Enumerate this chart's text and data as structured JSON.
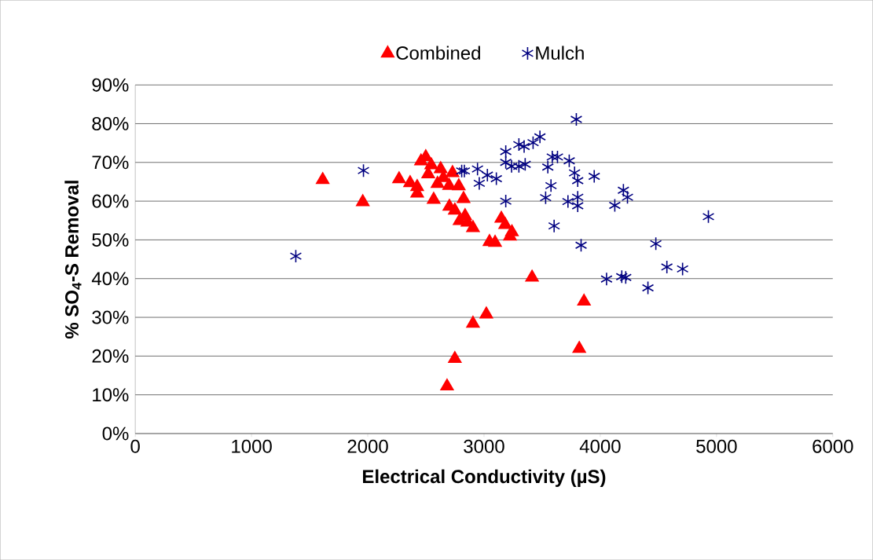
{
  "chart_data": {
    "type": "scatter",
    "xlabel": "Electrical Conductivity (µS)",
    "ylabel": "% SO$_{4}$-S Removal",
    "xlim": [
      0,
      6000
    ],
    "xticks": [
      0,
      1000,
      2000,
      3000,
      4000,
      5000,
      6000
    ],
    "ylim": [
      0,
      90
    ],
    "yticks": [
      {
        "value": 0,
        "label": "0%"
      },
      {
        "value": 10,
        "label": "10%"
      },
      {
        "value": 20,
        "label": "20%"
      },
      {
        "value": 30,
        "label": "30%"
      },
      {
        "value": 40,
        "label": "40%"
      },
      {
        "value": 50,
        "label": "50%"
      },
      {
        "value": 60,
        "label": "60%"
      },
      {
        "value": 70,
        "label": "70%"
      },
      {
        "value": 80,
        "label": "80%"
      },
      {
        "value": 90,
        "label": "90%"
      }
    ],
    "grid": "y",
    "legend": "top",
    "series": [
      {
        "name": "Combined",
        "color": "#ff0000",
        "marker": "triangle",
        "x": [
          1612,
          1957,
          2269,
          2364,
          2425,
          2425,
          2458,
          2499,
          2546,
          2567,
          2600,
          2620,
          2668,
          2729,
          2567,
          2783,
          2824,
          2702,
          2749,
          2790,
          2837,
          2858,
          2905,
          3047,
          3095,
          3149,
          3182,
          3223,
          3240,
          2905,
          3020,
          2749,
          2682,
          3413,
          3860,
          3819,
          2627,
          2520,
          2650,
          2700
        ],
        "values": [
          65.5,
          59.8,
          65.7,
          64.7,
          63.7,
          62,
          70.3,
          71.4,
          69.3,
          null,
          64.5,
          null,
          null,
          67.3,
          60.4,
          63.9,
          60.6,
          58.6,
          57.6,
          54.9,
          56.2,
          54.5,
          53.1,
          49.5,
          49.3,
          55.5,
          53.9,
          50.9,
          52,
          28.4,
          30.8,
          19.3,
          12.2,
          40.3,
          34.1,
          21.9,
          68.3,
          67,
          66,
          64
        ]
      },
      {
        "name": "Mulch",
        "color": "#000080",
        "marker": "cross",
        "x": [
          1381,
          1963,
          2808,
          2831,
          2944,
          2959,
          3029,
          3106,
          3187,
          3187,
          3187,
          3237,
          3300,
          3300,
          3345,
          3354,
          3422,
          3481,
          3549,
          3587,
          3632,
          3733,
          3779,
          3576,
          3530,
          3806,
          3806,
          3806,
          3948,
          3794,
          3722,
          3603,
          3835,
          4199,
          4234,
          4125,
          4478,
          4573,
          4708,
          4054,
          4185,
          4219,
          4410,
          4930
        ],
        "values": [
          45.8,
          67.9,
          67.8,
          67.8,
          68.3,
          64.6,
          66.7,
          65.8,
          72.8,
          70.0,
          60.0,
          69.0,
          74.6,
          69.0,
          74.1,
          69.5,
          75.1,
          76.6,
          68.8,
          71.4,
          71.4,
          70.4,
          67.3,
          64.0,
          60.9,
          65.3,
          61.0,
          58.8,
          66.4,
          81.1,
          59.9,
          53.6,
          48.6,
          62.8,
          61.0,
          58.9,
          49.0,
          43.0,
          42.5,
          39.9,
          40.5,
          40.3,
          37.6,
          56.0
        ]
      }
    ]
  }
}
